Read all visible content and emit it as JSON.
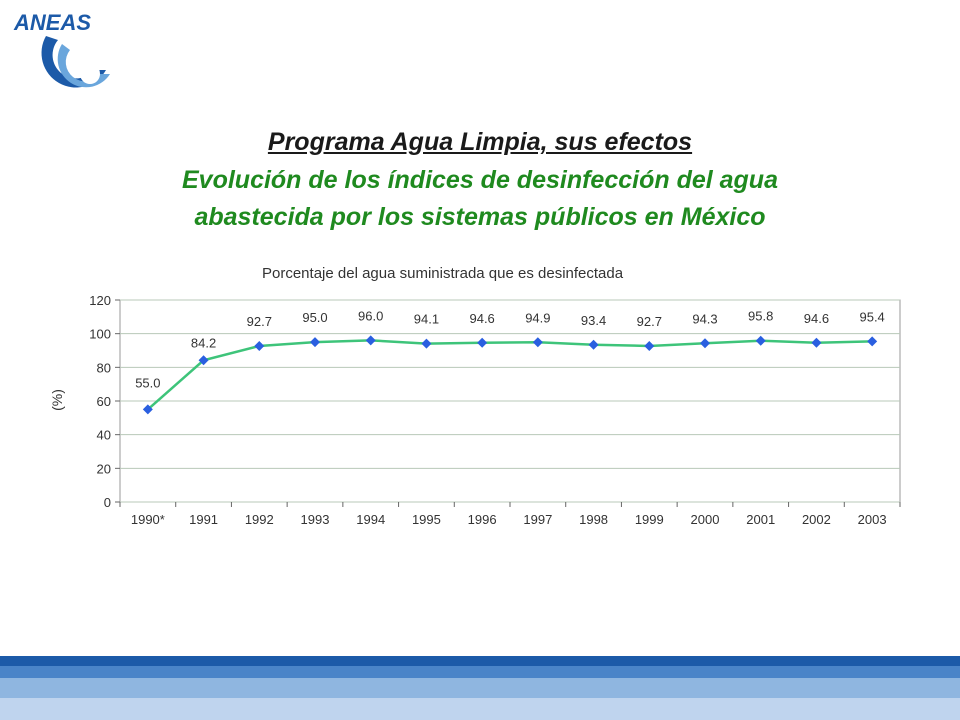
{
  "logo": {
    "text": "ANEAS"
  },
  "slide": {
    "title": "Programa Agua Limpia, sus efectos",
    "subtitle_line1": "Evolución de los índices de desinfección del agua",
    "subtitle_line2": "abastecida por los sistemas públicos en México"
  },
  "chart_data": {
    "type": "line",
    "title": "Porcentaje del agua suministrada que es desinfectada",
    "xlabel": "",
    "ylabel": "(%)",
    "categories": [
      "1990*",
      "1991",
      "1992",
      "1993",
      "1994",
      "1995",
      "1996",
      "1997",
      "1998",
      "1999",
      "2000",
      "2001",
      "2002",
      "2003"
    ],
    "values": [
      55.0,
      84.2,
      92.7,
      95.0,
      96.0,
      94.1,
      94.6,
      94.9,
      93.4,
      92.7,
      94.3,
      95.8,
      94.6,
      95.4
    ],
    "value_labels": [
      "55.0",
      "84.2",
      "92.7",
      "95.0",
      "96.0",
      "94.1",
      "94.6",
      "94.9",
      "93.4",
      "92.7",
      "94.3",
      "95.8",
      "94.6",
      "95.4"
    ],
    "ylim": [
      0,
      120
    ],
    "yticks": [
      0,
      20,
      40,
      60,
      80,
      100,
      120
    ],
    "grid": true,
    "line_color": "#3ec47a",
    "marker_color": "#2a5fe0"
  },
  "colors": {
    "title_text": "#1a1a1a",
    "subtitle_text": "#1f8a1f",
    "band_dark": "#1c5aa8",
    "band_mid": "#4a84c8",
    "band_light": "#8fb6e0",
    "band_pale": "#bfd4ee"
  }
}
